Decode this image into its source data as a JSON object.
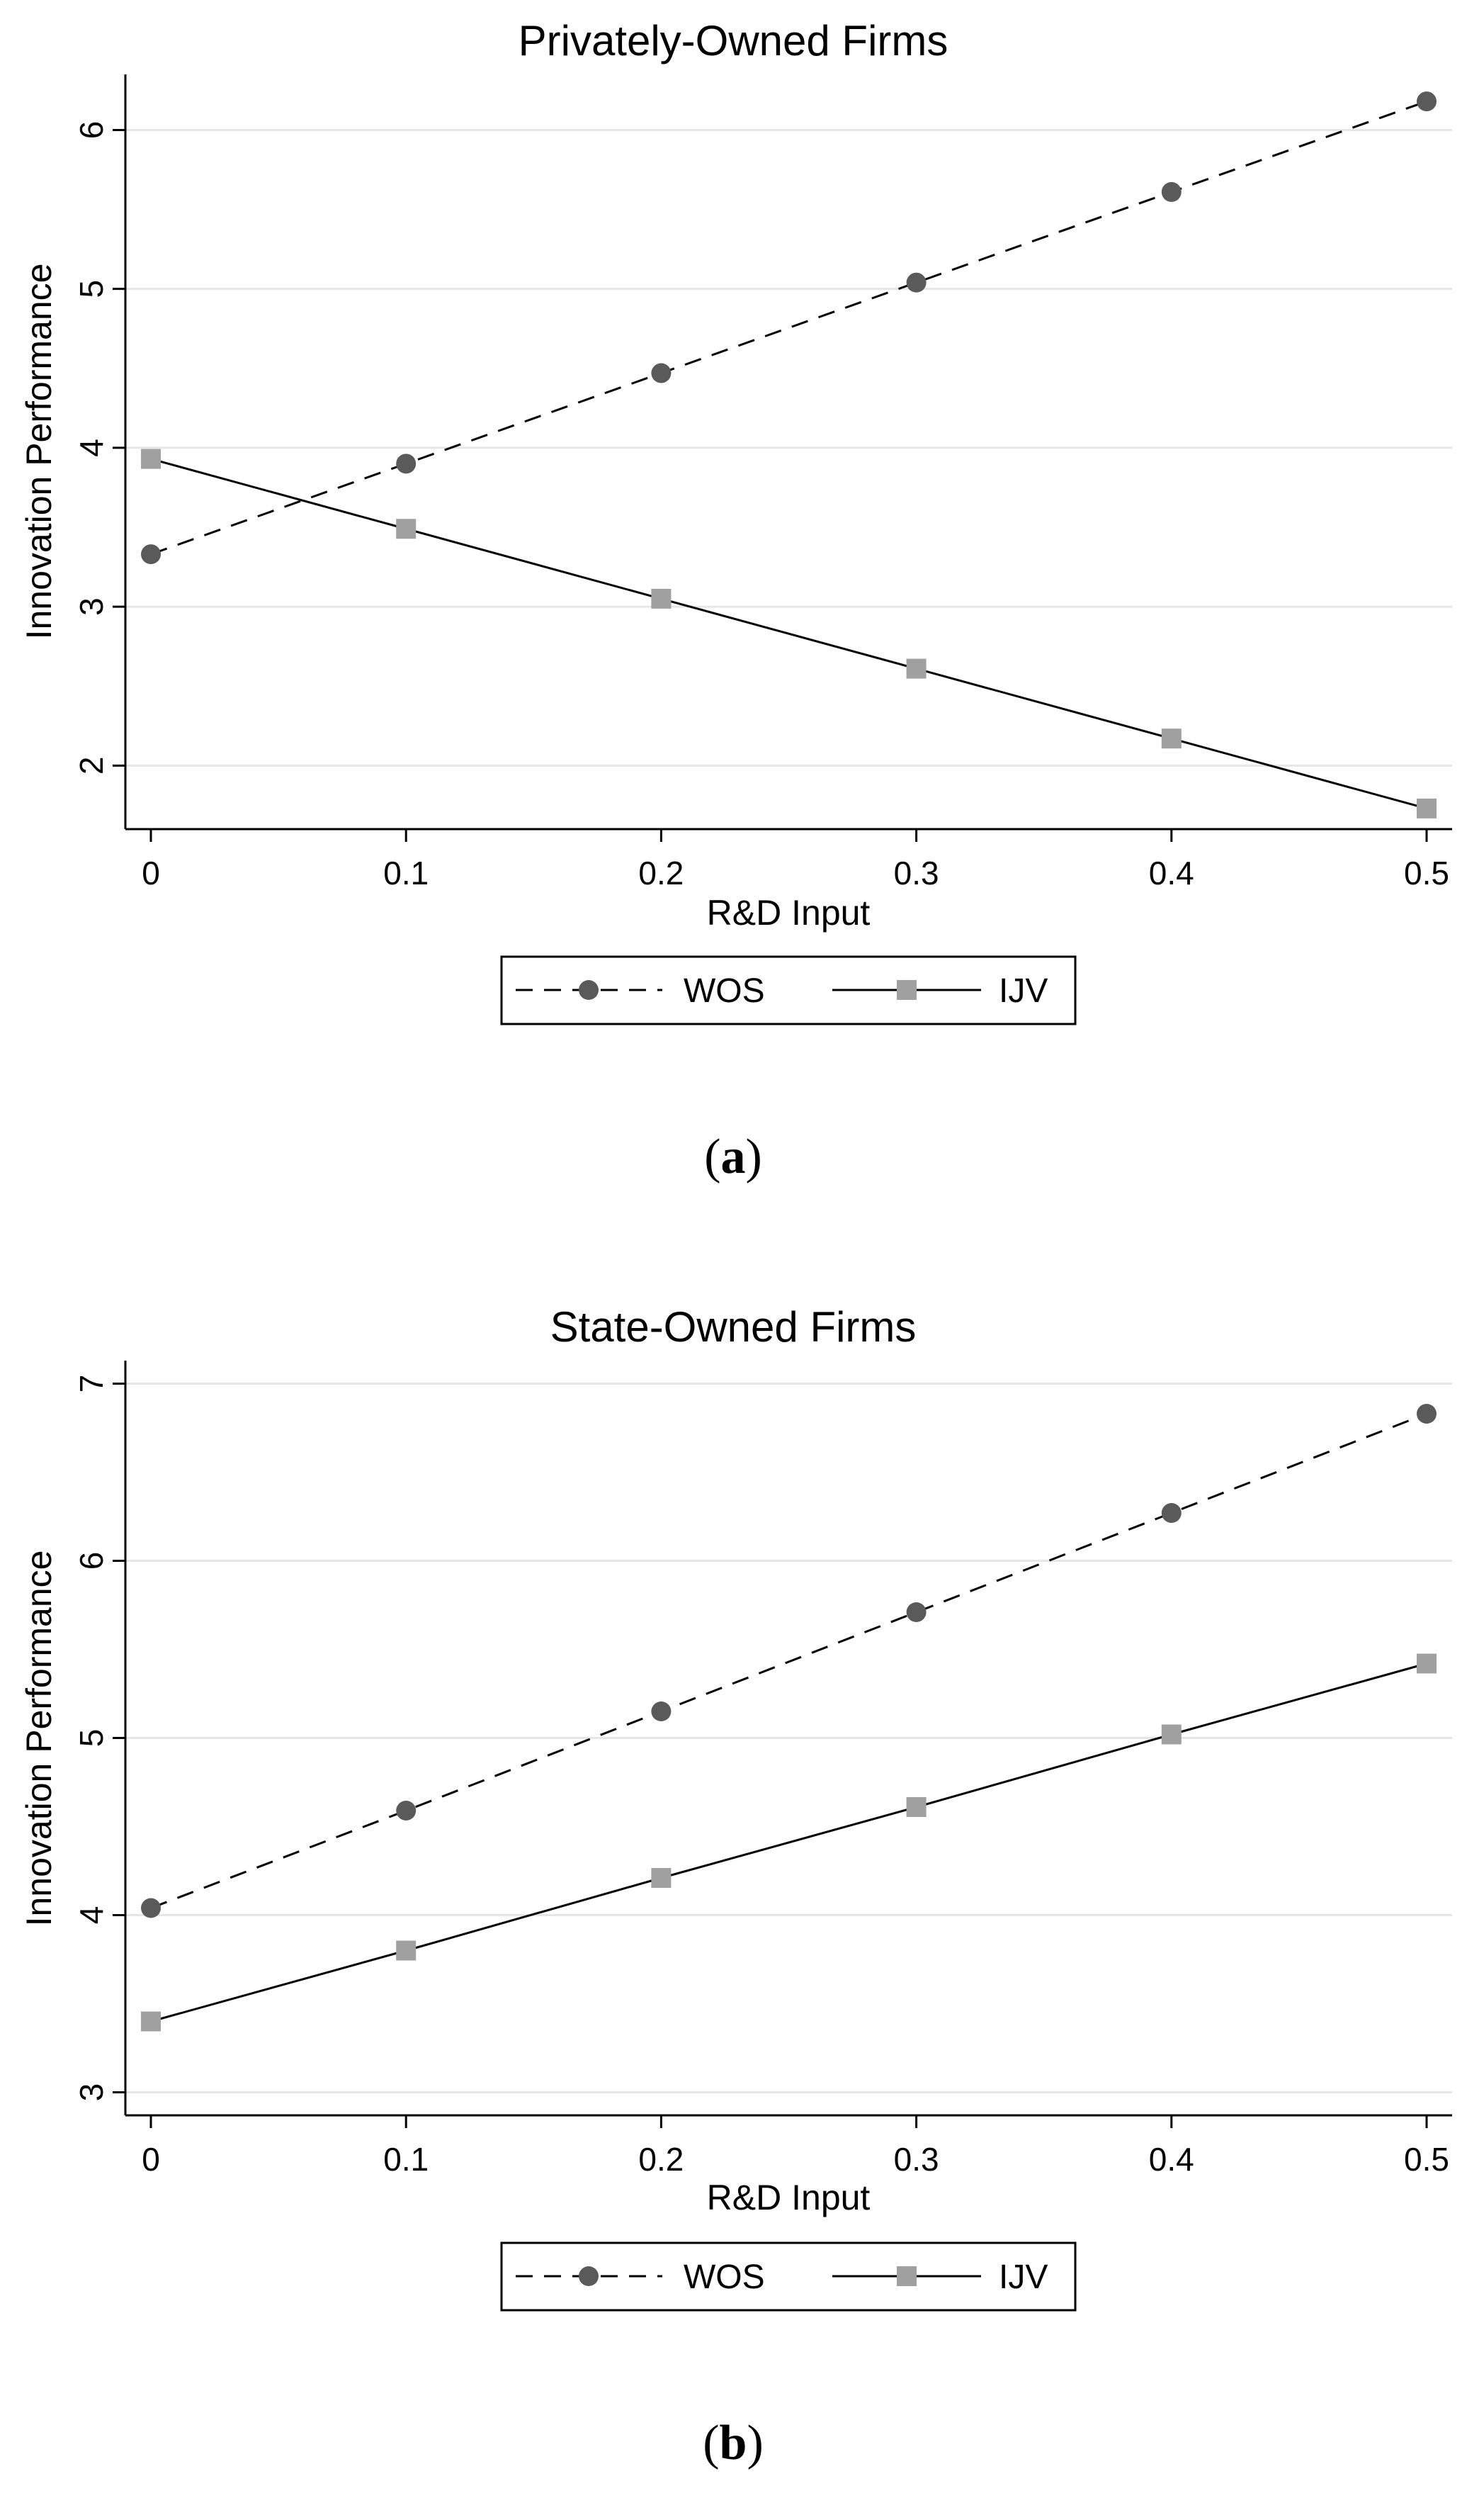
{
  "chart_data": [
    {
      "type": "line",
      "title": "Privately-Owned Firms",
      "xlabel": "R&D Input",
      "ylabel": "Innovation Performance",
      "x": [
        0,
        0.1,
        0.2,
        0.3,
        0.4,
        0.5
      ],
      "x_tick_labels": [
        "0",
        "0.1",
        "0.2",
        "0.3",
        "0.4",
        "0.5"
      ],
      "y_ticks": [
        2,
        3,
        4,
        5,
        6
      ],
      "y_tick_labels": [
        "2",
        "3",
        "4",
        "5",
        "6"
      ],
      "xlim": [
        -0.01,
        0.51
      ],
      "ylim": [
        1.6,
        6.35
      ],
      "grid": true,
      "legend_position": "bottom",
      "series": [
        {
          "name": "WOS",
          "values": [
            3.33,
            3.9,
            4.47,
            5.04,
            5.61,
            6.18
          ],
          "line_style": "dashed",
          "marker": "circle",
          "color": "#5a5a5a"
        },
        {
          "name": "IJV",
          "values": [
            3.93,
            3.49,
            3.05,
            2.61,
            2.17,
            1.73
          ],
          "line_style": "solid",
          "marker": "square",
          "color": "#a0a0a0"
        }
      ],
      "caption_letter": "a"
    },
    {
      "type": "line",
      "title": "State-Owned Firms",
      "xlabel": "R&D Input",
      "ylabel": "Innovation Performance",
      "x": [
        0,
        0.1,
        0.2,
        0.3,
        0.4,
        0.5
      ],
      "x_tick_labels": [
        "0",
        "0.1",
        "0.2",
        "0.3",
        "0.4",
        "0.5"
      ],
      "y_ticks": [
        3,
        4,
        5,
        6,
        7
      ],
      "y_tick_labels": [
        "3",
        "4",
        "5",
        "6",
        "7"
      ],
      "xlim": [
        -0.01,
        0.51
      ],
      "ylim": [
        2.87,
        7.13
      ],
      "grid": true,
      "legend_position": "bottom",
      "series": [
        {
          "name": "WOS",
          "values": [
            4.04,
            4.59,
            5.15,
            5.71,
            6.27,
            6.83
          ],
          "line_style": "dashed",
          "marker": "circle",
          "color": "#5a5a5a"
        },
        {
          "name": "IJV",
          "values": [
            3.4,
            3.8,
            4.21,
            4.61,
            5.02,
            5.42
          ],
          "line_style": "solid",
          "marker": "square",
          "color": "#a0a0a0"
        }
      ],
      "caption_letter": "b"
    }
  ]
}
